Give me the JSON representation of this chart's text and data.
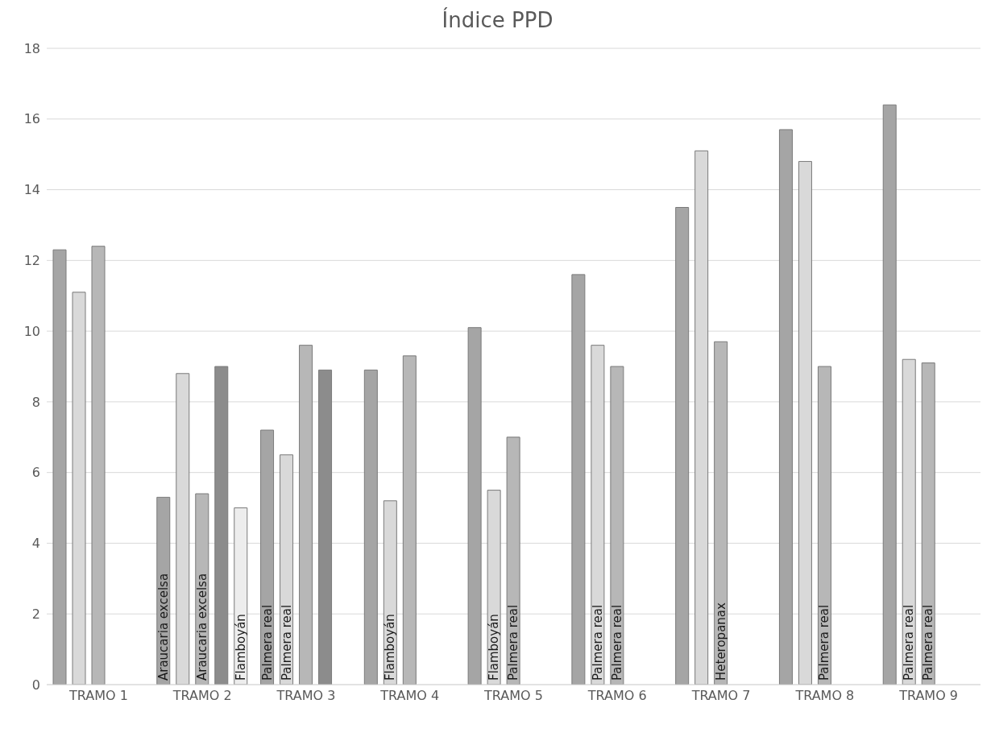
{
  "chart_data": {
    "type": "bar",
    "title": "Índice PPD",
    "categories": [
      "TRAMO 1",
      "TRAMO 2",
      "TRAMO 3",
      "TRAMO 4",
      "TRAMO 5",
      "TRAMO 6",
      "TRAMO 7",
      "TRAMO 8",
      "TRAMO 9"
    ],
    "series": [
      {
        "color": "#a5a5a5",
        "values": [
          12.3,
          5.3,
          7.2,
          8.9,
          10.1,
          11.6,
          13.5,
          15.7,
          16.4
        ],
        "value_labels": [
          null,
          "Araucaria excelsa",
          "Palmera real",
          null,
          null,
          null,
          null,
          null,
          null
        ]
      },
      {
        "color": "#d9d9d9",
        "values": [
          11.1,
          8.8,
          6.5,
          5.2,
          5.5,
          9.6,
          15.1,
          14.8,
          9.2
        ],
        "value_labels": [
          null,
          null,
          "Palmera real",
          "Flamboyán",
          "Flamboyán",
          "Palmera real",
          null,
          null,
          "Palmera real"
        ]
      },
      {
        "color": "#b7b7b7",
        "values": [
          12.4,
          5.4,
          9.6,
          9.3,
          7.0,
          9.0,
          9.7,
          9.0,
          9.1
        ],
        "value_labels": [
          null,
          "Araucaria excelsa",
          null,
          null,
          "Palmera real",
          "Palmera real",
          "Heteropanax",
          "Palmera real",
          "Palmera real"
        ]
      },
      {
        "color": "#8c8c8c",
        "values": [
          null,
          9.0,
          8.9,
          null,
          null,
          null,
          null,
          null,
          null
        ]
      },
      {
        "color": "#ededed",
        "values": [
          null,
          5.0,
          null,
          null,
          null,
          null,
          null,
          null,
          null
        ],
        "value_labels": [
          null,
          "Flamboyán",
          null,
          null,
          null,
          null,
          null,
          null,
          null
        ]
      }
    ],
    "ylim": [
      0,
      18
    ],
    "yticks": [
      0,
      2,
      4,
      6,
      8,
      10,
      12,
      14,
      16,
      18
    ],
    "grid": "y",
    "legend": false
  }
}
